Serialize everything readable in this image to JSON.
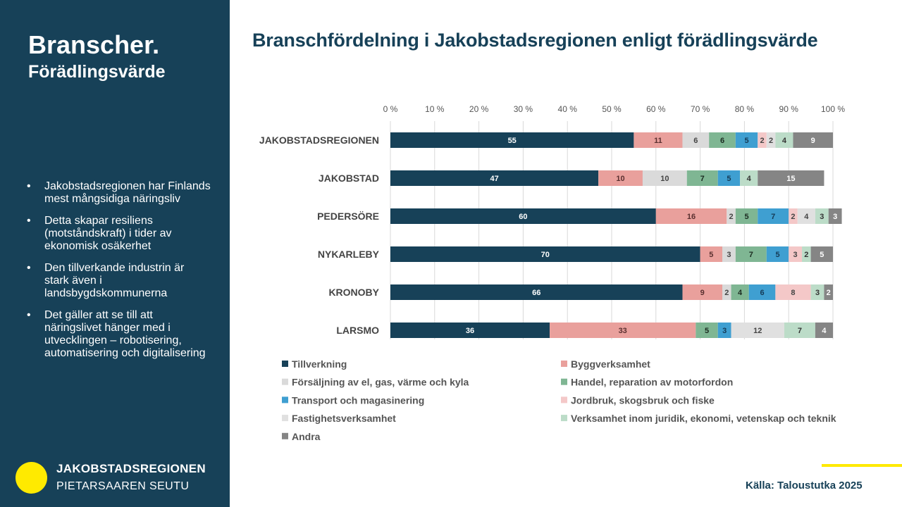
{
  "sidebar": {
    "title": "Branscher.",
    "subtitle": "Förädlingsvärde",
    "bullets": [
      "Jakobstadsregionen har Finlands mest mångsidiga näringsliv",
      "Detta skapar resiliens (motståndskraft) i tider av ekonomisk osäkerhet",
      "Den tillverkande industrin är stark även i landsbygdskommunerna",
      "Det gäller att se till att näringslivet hänger med i utvecklingen – robotisering, automatisering och digitalisering"
    ],
    "logo_line1": "JAKOBSTADSREGIONEN",
    "logo_line2": "PIETARSAAREN SEUTU"
  },
  "source": "Källa: Taloustutka 2025",
  "colors": {
    "sidebar_bg": "#174158",
    "accent_yellow": "#ffea00",
    "title_color": "#174158"
  },
  "chart_data": {
    "type": "bar",
    "orientation": "horizontal",
    "stacked": "percent",
    "title": "Branschfördelning i Jakobstadsregionen enligt förädlingsvärde",
    "x_ticks": [
      "0 %",
      "10 %",
      "20 %",
      "30 %",
      "40 %",
      "50 %",
      "60 %",
      "70 %",
      "80 %",
      "90 %",
      "100 %"
    ],
    "xlim": [
      0,
      100
    ],
    "grid": "vertical",
    "legend_position": "bottom",
    "categories": [
      "JAKOBSTADSREGIONEN",
      "JAKOBSTAD",
      "PEDERSÖRE",
      "NYKARLEBY",
      "KRONOBY",
      "LARSMO"
    ],
    "series": [
      {
        "name": "Tillverkning",
        "color": "#174158",
        "label_color": "#ffffff",
        "values": [
          55,
          47,
          60,
          70,
          66,
          36
        ]
      },
      {
        "name": "Byggverksamhet",
        "color": "#e9a09c",
        "label_color": "#5a3030",
        "values": [
          11,
          10,
          16,
          5,
          9,
          33
        ]
      },
      {
        "name": "Försäljning av el, gas, värme och kyla",
        "color": "#dadada",
        "label_color": "#444444",
        "values": [
          6,
          10,
          2,
          3,
          2,
          0
        ]
      },
      {
        "name": "Handel, reparation av motorfordon",
        "color": "#7fb693",
        "label_color": "#1b2b20",
        "values": [
          6,
          7,
          5,
          7,
          4,
          5
        ]
      },
      {
        "name": "Transport och magasinering",
        "color": "#3f9fd1",
        "label_color": "#153a55",
        "values": [
          5,
          5,
          7,
          5,
          6,
          3
        ]
      },
      {
        "name": "Jordbruk, skogsbruk och fiske",
        "color": "#f4c8c8",
        "label_color": "#444444",
        "values": [
          2,
          0,
          2,
          3,
          8,
          0
        ]
      },
      {
        "name": "Fastighetsverksamhet",
        "color": "#e0e0e0",
        "label_color": "#444444",
        "values": [
          2,
          0,
          4,
          0,
          0,
          12
        ]
      },
      {
        "name": "Verksamhet inom juridik, ekonomi, vetenskap och teknik",
        "color": "#bcdcc8",
        "label_color": "#333333",
        "values": [
          4,
          4,
          3,
          2,
          3,
          7
        ]
      },
      {
        "name": "Andra",
        "color": "#858585",
        "label_color": "#ffffff",
        "values": [
          9,
          15,
          3,
          5,
          2,
          4
        ]
      }
    ]
  }
}
